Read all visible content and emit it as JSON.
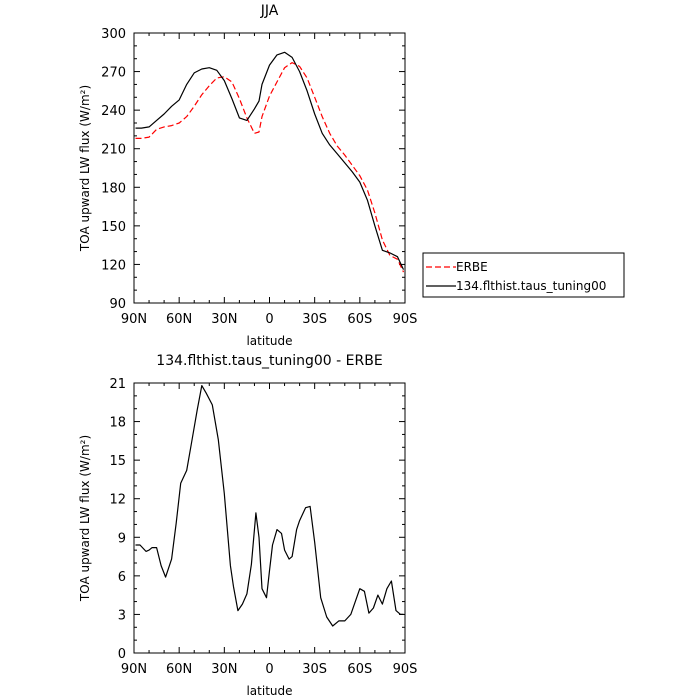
{
  "chart_data": [
    {
      "type": "line",
      "title": "JJA",
      "xlabel": "latitude",
      "ylabel": "TOA upward LW flux (W/m²)",
      "xlim": [
        90,
        -90
      ],
      "ylim": [
        90,
        300
      ],
      "x_ticks": [
        90,
        60,
        30,
        0,
        -30,
        -60,
        -90
      ],
      "x_tick_labels": [
        "90N",
        "60N",
        "30N",
        "0",
        "30S",
        "60S",
        "90S"
      ],
      "y_ticks": [
        90,
        120,
        150,
        180,
        210,
        240,
        270,
        300
      ],
      "y_tick_labels": [
        "90",
        "120",
        "150",
        "180",
        "210",
        "240",
        "270",
        "300"
      ],
      "grid": false,
      "legend_position": "right",
      "series": [
        {
          "name": "ERBE",
          "color": "#ff0000",
          "dash": "dashed",
          "x": [
            89,
            85,
            80,
            75,
            70,
            65,
            60,
            55,
            50,
            45,
            40,
            35,
            30,
            25,
            20,
            15,
            10,
            7,
            5,
            0,
            -5,
            -10,
            -15,
            -20,
            -25,
            -30,
            -35,
            -40,
            -45,
            -50,
            -55,
            -60,
            -65,
            -70,
            -75,
            -80,
            -85,
            -89
          ],
          "y": [
            218,
            218,
            219,
            225,
            227,
            228,
            230,
            235,
            243,
            252,
            259,
            265,
            266,
            262,
            249,
            234,
            222,
            223,
            235,
            251,
            262,
            273,
            277,
            274,
            265,
            250,
            235,
            222,
            212,
            205,
            197,
            189,
            178,
            160,
            139,
            127,
            124,
            114
          ]
        },
        {
          "name": "134.flthist.taus_tuning00",
          "color": "#000000",
          "dash": "solid",
          "x": [
            89,
            85,
            80,
            75,
            70,
            65,
            60,
            55,
            50,
            45,
            40,
            35,
            30,
            25,
            20,
            15,
            10,
            7,
            5,
            0,
            -5,
            -10,
            -15,
            -20,
            -25,
            -30,
            -35,
            -40,
            -45,
            -50,
            -55,
            -60,
            -65,
            -70,
            -75,
            -80,
            -85,
            -89
          ],
          "y": [
            226,
            226,
            227,
            232,
            237,
            243,
            248,
            260,
            269,
            272,
            273,
            271,
            263,
            249,
            234,
            232,
            241,
            247,
            260,
            275,
            283,
            285,
            281,
            270,
            255,
            237,
            222,
            213,
            206,
            199,
            192,
            184,
            170,
            150,
            131,
            129,
            126,
            116
          ]
        }
      ]
    },
    {
      "type": "line",
      "title": "134.flthist.taus_tuning00 - ERBE",
      "xlabel": "latitude",
      "ylabel": "TOA upward LW flux (W/m²)",
      "xlim": [
        90,
        -90
      ],
      "ylim": [
        0,
        21
      ],
      "x_ticks": [
        90,
        60,
        30,
        0,
        -30,
        -60,
        -90
      ],
      "x_tick_labels": [
        "90N",
        "60N",
        "30N",
        "0",
        "30S",
        "60S",
        "90S"
      ],
      "y_ticks": [
        0,
        3,
        6,
        9,
        12,
        15,
        18,
        21
      ],
      "y_tick_labels": [
        "0",
        "3",
        "6",
        "9",
        "12",
        "15",
        "18",
        "21"
      ],
      "grid": false,
      "series": [
        {
          "color": "#000000",
          "dash": "solid",
          "x": [
            89,
            86,
            82,
            80,
            78,
            75,
            72,
            69,
            65,
            62,
            59,
            55,
            52,
            48,
            45,
            42,
            38,
            34,
            30,
            26,
            24,
            21,
            18,
            15,
            12,
            9,
            7,
            5,
            2,
            0,
            -2,
            -5,
            -8,
            -10,
            -13,
            -15,
            -18,
            -20,
            -24,
            -27,
            -30,
            -34,
            -38,
            -42,
            -46,
            -50,
            -54,
            -57,
            -60,
            -63,
            -66,
            -69,
            -72,
            -75,
            -78,
            -81,
            -84,
            -87,
            -89
          ],
          "y": [
            8.4,
            8.4,
            7.9,
            8.0,
            8.2,
            8.2,
            6.8,
            5.9,
            7.3,
            10.1,
            13.2,
            14.2,
            16.2,
            18.9,
            20.8,
            20.2,
            19.3,
            16.6,
            12.4,
            6.8,
            5.2,
            3.3,
            3.8,
            4.6,
            6.9,
            10.9,
            9.0,
            5.0,
            4.3,
            6.4,
            8.4,
            9.6,
            9.3,
            8.0,
            7.3,
            7.5,
            9.6,
            10.3,
            11.3,
            11.4,
            8.6,
            4.3,
            2.8,
            2.1,
            2.5,
            2.5,
            3.0,
            4.0,
            5.0,
            4.8,
            3.1,
            3.5,
            4.5,
            3.8,
            5.0,
            5.6,
            3.3,
            3.0,
            3.0
          ]
        }
      ]
    }
  ]
}
